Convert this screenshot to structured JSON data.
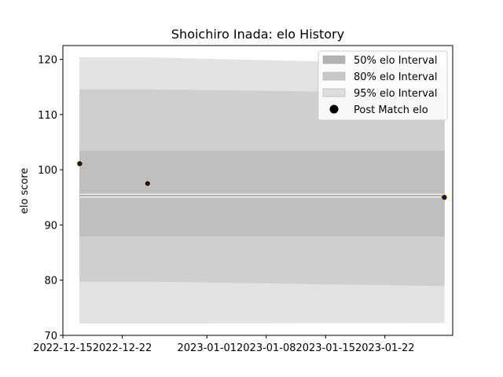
{
  "chart_data": {
    "type": "line",
    "title": "Shoichiro Inada: elo History",
    "xlabel": "",
    "ylabel": "elo score",
    "x_type": "date",
    "xlim": [
      "2022-12-15",
      "2023-01-30"
    ],
    "ylim": [
      70,
      122.5
    ],
    "x_ticks": [
      "2022-12-15",
      "2022-12-22",
      "2023-01-01",
      "2023-01-08",
      "2023-01-15",
      "2023-01-22"
    ],
    "y_ticks": [
      70,
      80,
      90,
      100,
      110,
      120
    ],
    "grid": false,
    "legend_position": "top-right",
    "bands": [
      {
        "name": "95% elo Interval",
        "color": "#e3e3e3",
        "x": [
          "2022-12-17",
          "2022-12-25",
          "2023-01-29"
        ],
        "lower": [
          72.2,
          72.2,
          72.3
        ],
        "upper": [
          120.3,
          120.3,
          119.0
        ]
      },
      {
        "name": "80% elo Interval",
        "color": "#cfcfcf",
        "x": [
          "2022-12-17",
          "2022-12-25",
          "2023-01-29"
        ],
        "lower": [
          79.8,
          79.8,
          79.0
        ],
        "upper": [
          114.5,
          114.5,
          113.8
        ]
      },
      {
        "name": "50% elo Interval",
        "color": "#bfbfbf",
        "x": [
          "2022-12-17",
          "2022-12-25",
          "2023-01-29"
        ],
        "lower": [
          88.0,
          88.0,
          88.0
        ],
        "upper": [
          103.4,
          103.4,
          103.4
        ]
      }
    ],
    "mean_line": {
      "color": "#999999",
      "x": [
        "2022-12-17",
        "2022-12-25",
        "2023-01-29"
      ],
      "y": [
        95.3,
        95.3,
        95.3
      ]
    },
    "series": [
      {
        "name": "Post Match elo",
        "color": "#00008b",
        "edge_color": "#ffd700",
        "x": [
          "2022-12-17",
          "2022-12-25",
          "2023-01-29"
        ],
        "y": [
          101.1,
          97.5,
          95.0
        ]
      }
    ],
    "legend": [
      {
        "label": "50% elo Interval",
        "kind": "patch",
        "color": "#b3b3b3"
      },
      {
        "label": "80% elo Interval",
        "kind": "patch",
        "color": "#c8c8c8"
      },
      {
        "label": "95% elo Interval",
        "kind": "patch",
        "color": "#dedede"
      },
      {
        "label": "Post Match elo",
        "kind": "marker",
        "color": "#000000"
      }
    ]
  }
}
